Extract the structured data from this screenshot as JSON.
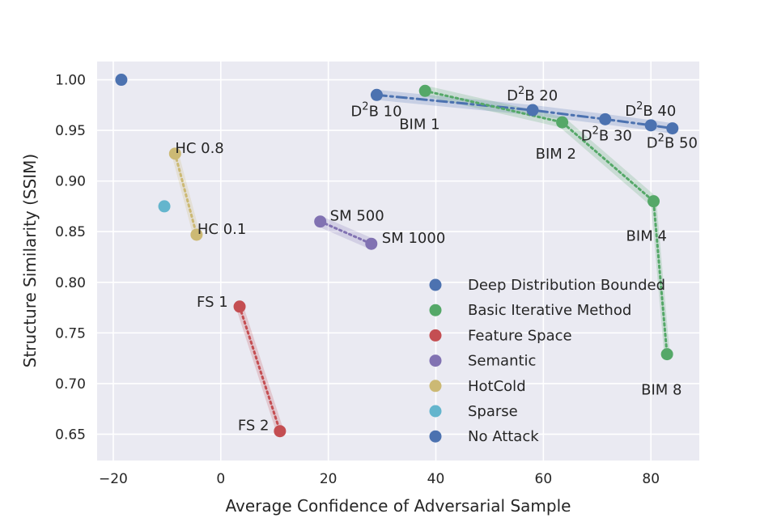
{
  "chart_data": {
    "type": "scatter",
    "title": "",
    "xlabel": "Average Confidence of Adversarial Sample",
    "ylabel": "Structure Similarity (SSIM)",
    "xlim": [
      -23,
      89
    ],
    "ylim": [
      0.624,
      1.018
    ],
    "xticks": [
      -20,
      0,
      20,
      40,
      60,
      80
    ],
    "yticks": [
      0.65,
      0.7,
      0.75,
      0.8,
      0.85,
      0.9,
      0.95,
      1.0
    ],
    "xtick_labels": [
      "−20",
      "0",
      "20",
      "40",
      "60",
      "80"
    ],
    "ytick_labels": [
      "0.65",
      "0.70",
      "0.75",
      "0.80",
      "0.85",
      "0.90",
      "0.95",
      "1.00"
    ],
    "grid": true,
    "legend_position": "lower-right",
    "series": [
      {
        "name": "Deep Distribution Bounded",
        "color": "#4c72b0",
        "line_style": "dashdot",
        "points": [
          {
            "x": 29,
            "y": 0.985,
            "label": "10",
            "label_prefix": "D",
            "label_sup": "2",
            "label_mid": "B "
          },
          {
            "x": 58,
            "y": 0.97,
            "label": "20",
            "label_prefix": "D",
            "label_sup": "2",
            "label_mid": "B "
          },
          {
            "x": 71.5,
            "y": 0.961,
            "label": "30",
            "label_prefix": "D",
            "label_sup": "2",
            "label_mid": "B "
          },
          {
            "x": 80,
            "y": 0.955,
            "label": "40",
            "label_prefix": "D",
            "label_sup": "2",
            "label_mid": "B "
          },
          {
            "x": 84,
            "y": 0.952,
            "label": "50",
            "label_prefix": "D",
            "label_sup": "2",
            "label_mid": "B "
          }
        ]
      },
      {
        "name": "Basic Iterative Method",
        "color": "#55a868",
        "line_style": "dotted",
        "points": [
          {
            "x": 38,
            "y": 0.989,
            "label": "BIM 1"
          },
          {
            "x": 63.5,
            "y": 0.958,
            "label": "BIM 2"
          },
          {
            "x": 80.5,
            "y": 0.88,
            "label": "BIM 4"
          },
          {
            "x": 83,
            "y": 0.729,
            "label": "BIM 8"
          }
        ]
      },
      {
        "name": "Feature Space",
        "color": "#c44e52",
        "line_style": "dotted",
        "points": [
          {
            "x": 3.5,
            "y": 0.776,
            "label": "FS 1"
          },
          {
            "x": 11,
            "y": 0.653,
            "label": "FS 2"
          }
        ]
      },
      {
        "name": "Semantic",
        "color": "#8172b2",
        "line_style": "dotted",
        "points": [
          {
            "x": 18.5,
            "y": 0.86,
            "label": "SM 500"
          },
          {
            "x": 28,
            "y": 0.838,
            "label": "SM 1000"
          }
        ]
      },
      {
        "name": "HotCold",
        "color": "#ccb974",
        "line_style": "dotted",
        "points": [
          {
            "x": -8.5,
            "y": 0.927,
            "label": "HC 0.8"
          },
          {
            "x": -4.5,
            "y": 0.847,
            "label": "HC 0.1"
          }
        ]
      },
      {
        "name": "Sparse",
        "color": "#64b5cd",
        "line_style": "none",
        "points": [
          {
            "x": -10.5,
            "y": 0.875,
            "label": ""
          }
        ]
      },
      {
        "name": "No Attack",
        "color": "#4c72b0",
        "line_style": "none",
        "points": [
          {
            "x": -18.5,
            "y": 1.0,
            "label": ""
          }
        ]
      }
    ]
  }
}
